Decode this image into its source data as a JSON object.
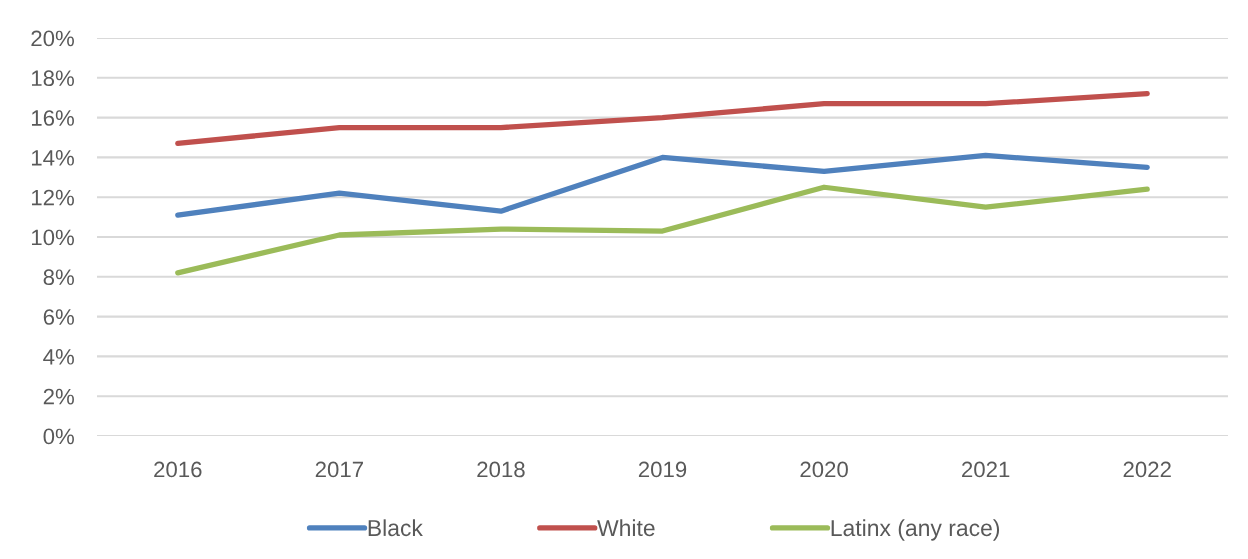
{
  "chart_data": {
    "type": "line",
    "categories": [
      "2016",
      "2017",
      "2018",
      "2019",
      "2020",
      "2021",
      "2022"
    ],
    "series": [
      {
        "name": "Black",
        "color": "#4f81bd",
        "values": [
          11.1,
          12.2,
          11.3,
          14.0,
          13.3,
          14.1,
          13.5
        ]
      },
      {
        "name": "White",
        "color": "#c0504d",
        "values": [
          14.7,
          15.5,
          15.5,
          16.0,
          16.7,
          16.7,
          17.2
        ]
      },
      {
        "name": "Latinx (any race)",
        "color": "#9bbb59",
        "values": [
          8.2,
          10.1,
          10.4,
          10.3,
          12.5,
          11.5,
          12.4
        ]
      }
    ],
    "ylim": [
      0,
      20
    ],
    "yticks": [
      {
        "value": 0,
        "label": "0%"
      },
      {
        "value": 2,
        "label": "2%"
      },
      {
        "value": 4,
        "label": "4%"
      },
      {
        "value": 6,
        "label": "6%"
      },
      {
        "value": 8,
        "label": "8%"
      },
      {
        "value": 10,
        "label": "10%"
      },
      {
        "value": 12,
        "label": "12%"
      },
      {
        "value": 14,
        "label": "14%"
      },
      {
        "value": 16,
        "label": "16%"
      },
      {
        "value": 18,
        "label": "18%"
      },
      {
        "value": 20,
        "label": "20%"
      }
    ],
    "grid": "y",
    "legend": "bottom",
    "marker": "none",
    "line_style": "solid"
  }
}
